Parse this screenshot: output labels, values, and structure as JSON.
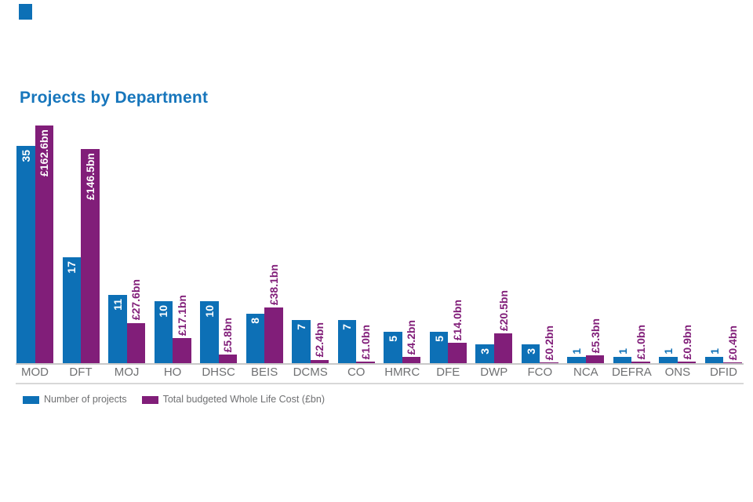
{
  "title": "Projects by Department",
  "chart_data": {
    "type": "bar",
    "categories": [
      "MOD",
      "DFT",
      "MOJ",
      "HO",
      "DHSC",
      "BEIS",
      "DCMS",
      "CO",
      "HMRC",
      "DFE",
      "DWP",
      "FCO",
      "NCA",
      "DEFRA",
      "ONS",
      "DFID"
    ],
    "series": [
      {
        "name": "Number of projects",
        "color": "#0d70b6",
        "values": [
          35,
          17,
          11,
          10,
          10,
          8,
          7,
          7,
          5,
          5,
          3,
          3,
          1,
          1,
          1,
          1
        ],
        "data_labels": [
          "35",
          "17",
          "11",
          "10",
          "10",
          "8",
          "7",
          "7",
          "5",
          "5",
          "3",
          "3",
          "1",
          "1",
          "1",
          "1"
        ],
        "label_inside": [
          true,
          true,
          true,
          true,
          true,
          true,
          true,
          true,
          true,
          true,
          true,
          true,
          false,
          false,
          false,
          false
        ]
      },
      {
        "name": "Total budgeted Whole Life Cost (£bn)",
        "color": "#811e79",
        "values": [
          162.6,
          146.5,
          27.6,
          17.1,
          5.8,
          38.1,
          2.4,
          1.0,
          4.2,
          14.0,
          20.5,
          0.2,
          5.3,
          1.0,
          0.9,
          0.4
        ],
        "data_labels": [
          "£162.6bn",
          "£146.5bn",
          "£27.6bn",
          "£17.1bn",
          "£5.8bn",
          "£38.1bn",
          "£2.4bn",
          "£1.0bn",
          "£4.2bn",
          "£14.0bn",
          "£20.5bn",
          "£0.2bn",
          "£5.3bn",
          "£1.0bn",
          "£0.9bn",
          "£0.4bn"
        ],
        "label_inside": [
          true,
          true,
          false,
          false,
          false,
          false,
          false,
          false,
          false,
          false,
          false,
          false,
          false,
          false,
          false,
          false
        ]
      }
    ],
    "title": "Projects by Department",
    "xlabel": "",
    "ylabel": "",
    "grid": false,
    "axis_ticks_visible": false,
    "legend_position": "bottom-left",
    "data_label_color_inside": "#ffffff"
  },
  "legend": {
    "items": [
      {
        "label": "Number of projects",
        "color": "#0d70b6"
      },
      {
        "label": "Total budgeted Whole Life Cost (£bn)",
        "color": "#811e79"
      }
    ]
  },
  "colors": {
    "title": "#1776bc",
    "bar_blue": "#0d70b6",
    "bar_purple": "#811e79",
    "axis_label": "#6f7072",
    "axis_line": "#c8c8c8",
    "separator": "#d8d8d8",
    "label_on_bar": "#ffffff",
    "corner_marker": "#0d70b6"
  }
}
